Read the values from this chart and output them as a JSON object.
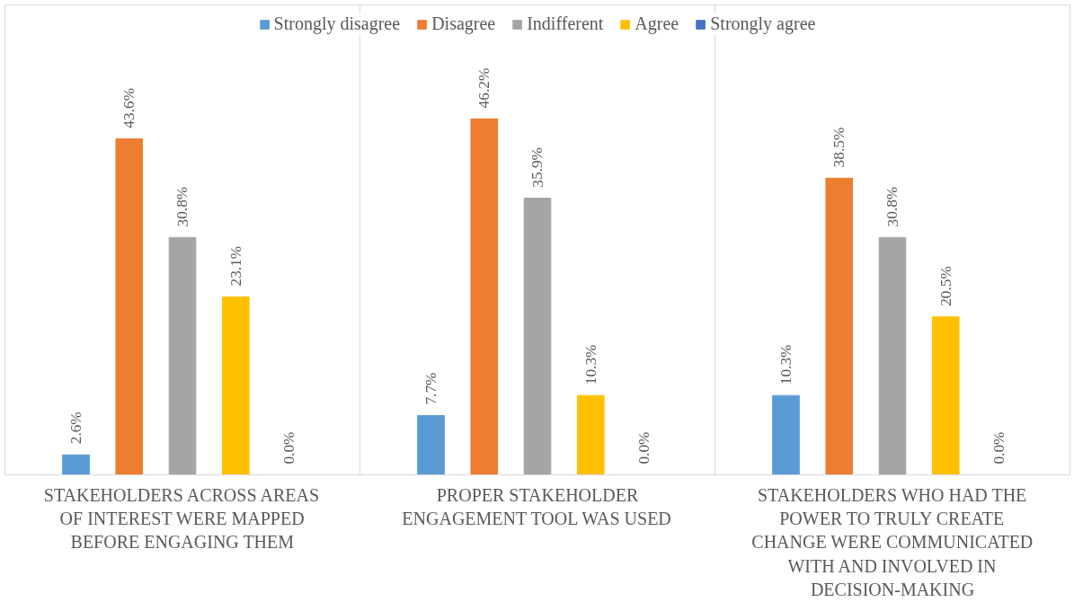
{
  "chart_data": {
    "type": "bar",
    "categories": [
      "STAKEHOLDERS ACROSS AREAS OF INTEREST WERE MAPPED BEFORE ENGAGING THEM",
      "PROPER STAKEHOLDER ENGAGEMENT TOOL WAS USED",
      "STAKEHOLDERS WHO HAD THE POWER TO TRULY CREATE CHANGE WERE COMMUNICATED WITH AND INVOLVED IN DECISION-MAKING"
    ],
    "series": [
      {
        "name": "Strongly disagree",
        "color": "#5b9bd5",
        "values": [
          2.6,
          7.7,
          10.3
        ],
        "value_labels": [
          "2.6%",
          "7.7%",
          "10.3%"
        ]
      },
      {
        "name": "Disagree",
        "color": "#ed7d31",
        "values": [
          43.6,
          46.2,
          38.5
        ],
        "value_labels": [
          "43.6%",
          "46.2%",
          "38.5%"
        ]
      },
      {
        "name": "Indifferent",
        "color": "#a5a5a5",
        "values": [
          30.8,
          35.9,
          30.8
        ],
        "value_labels": [
          "30.8%",
          "35.9%",
          "30.8%"
        ]
      },
      {
        "name": "Agree",
        "color": "#ffc000",
        "values": [
          23.1,
          10.3,
          20.5
        ],
        "value_labels": [
          "23.1%",
          "10.3%",
          "20.5%"
        ]
      },
      {
        "name": "Strongly agree",
        "color": "#4472c4",
        "values": [
          0.0,
          0.0,
          0.0
        ],
        "value_labels": [
          "0.0%",
          "0.0%",
          "0.0%"
        ]
      }
    ],
    "legend": "top",
    "tick_labels": "x"
  }
}
